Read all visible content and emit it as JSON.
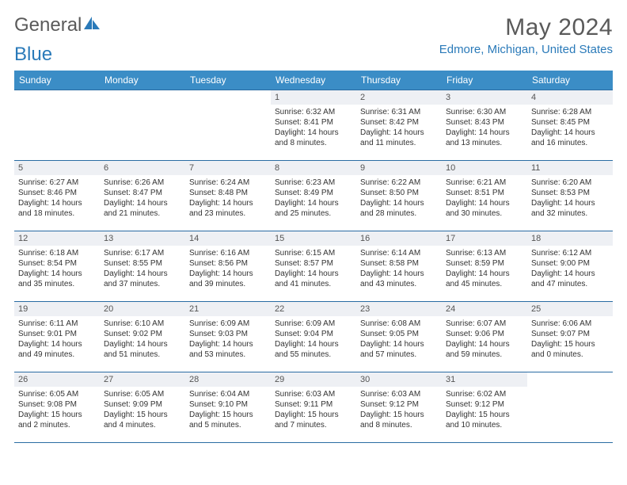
{
  "brand": {
    "prefix": "General",
    "suffix": "Blue",
    "icon_color": "#2a7ab9"
  },
  "title": "May 2024",
  "location": "Edmore, Michigan, United States",
  "colors": {
    "header_bg": "#3b8dc6",
    "border": "#2a6ca3",
    "daynum_bg": "#eef0f4",
    "text": "#333333",
    "brand_text": "#5a5a5a",
    "accent": "#2a7ab9",
    "background": "#ffffff"
  },
  "typography": {
    "title_fontsize": 30,
    "location_fontsize": 15,
    "dayhead_fontsize": 12,
    "cell_fontsize": 10
  },
  "day_names": [
    "Sunday",
    "Monday",
    "Tuesday",
    "Wednesday",
    "Thursday",
    "Friday",
    "Saturday"
  ],
  "weeks": [
    [
      null,
      null,
      null,
      {
        "n": "1",
        "sr": "6:32 AM",
        "ss": "8:41 PM",
        "dl": "14 hours and 8 minutes."
      },
      {
        "n": "2",
        "sr": "6:31 AM",
        "ss": "8:42 PM",
        "dl": "14 hours and 11 minutes."
      },
      {
        "n": "3",
        "sr": "6:30 AM",
        "ss": "8:43 PM",
        "dl": "14 hours and 13 minutes."
      },
      {
        "n": "4",
        "sr": "6:28 AM",
        "ss": "8:45 PM",
        "dl": "14 hours and 16 minutes."
      }
    ],
    [
      {
        "n": "5",
        "sr": "6:27 AM",
        "ss": "8:46 PM",
        "dl": "14 hours and 18 minutes."
      },
      {
        "n": "6",
        "sr": "6:26 AM",
        "ss": "8:47 PM",
        "dl": "14 hours and 21 minutes."
      },
      {
        "n": "7",
        "sr": "6:24 AM",
        "ss": "8:48 PM",
        "dl": "14 hours and 23 minutes."
      },
      {
        "n": "8",
        "sr": "6:23 AM",
        "ss": "8:49 PM",
        "dl": "14 hours and 25 minutes."
      },
      {
        "n": "9",
        "sr": "6:22 AM",
        "ss": "8:50 PM",
        "dl": "14 hours and 28 minutes."
      },
      {
        "n": "10",
        "sr": "6:21 AM",
        "ss": "8:51 PM",
        "dl": "14 hours and 30 minutes."
      },
      {
        "n": "11",
        "sr": "6:20 AM",
        "ss": "8:53 PM",
        "dl": "14 hours and 32 minutes."
      }
    ],
    [
      {
        "n": "12",
        "sr": "6:18 AM",
        "ss": "8:54 PM",
        "dl": "14 hours and 35 minutes."
      },
      {
        "n": "13",
        "sr": "6:17 AM",
        "ss": "8:55 PM",
        "dl": "14 hours and 37 minutes."
      },
      {
        "n": "14",
        "sr": "6:16 AM",
        "ss": "8:56 PM",
        "dl": "14 hours and 39 minutes."
      },
      {
        "n": "15",
        "sr": "6:15 AM",
        "ss": "8:57 PM",
        "dl": "14 hours and 41 minutes."
      },
      {
        "n": "16",
        "sr": "6:14 AM",
        "ss": "8:58 PM",
        "dl": "14 hours and 43 minutes."
      },
      {
        "n": "17",
        "sr": "6:13 AM",
        "ss": "8:59 PM",
        "dl": "14 hours and 45 minutes."
      },
      {
        "n": "18",
        "sr": "6:12 AM",
        "ss": "9:00 PM",
        "dl": "14 hours and 47 minutes."
      }
    ],
    [
      {
        "n": "19",
        "sr": "6:11 AM",
        "ss": "9:01 PM",
        "dl": "14 hours and 49 minutes."
      },
      {
        "n": "20",
        "sr": "6:10 AM",
        "ss": "9:02 PM",
        "dl": "14 hours and 51 minutes."
      },
      {
        "n": "21",
        "sr": "6:09 AM",
        "ss": "9:03 PM",
        "dl": "14 hours and 53 minutes."
      },
      {
        "n": "22",
        "sr": "6:09 AM",
        "ss": "9:04 PM",
        "dl": "14 hours and 55 minutes."
      },
      {
        "n": "23",
        "sr": "6:08 AM",
        "ss": "9:05 PM",
        "dl": "14 hours and 57 minutes."
      },
      {
        "n": "24",
        "sr": "6:07 AM",
        "ss": "9:06 PM",
        "dl": "14 hours and 59 minutes."
      },
      {
        "n": "25",
        "sr": "6:06 AM",
        "ss": "9:07 PM",
        "dl": "15 hours and 0 minutes."
      }
    ],
    [
      {
        "n": "26",
        "sr": "6:05 AM",
        "ss": "9:08 PM",
        "dl": "15 hours and 2 minutes."
      },
      {
        "n": "27",
        "sr": "6:05 AM",
        "ss": "9:09 PM",
        "dl": "15 hours and 4 minutes."
      },
      {
        "n": "28",
        "sr": "6:04 AM",
        "ss": "9:10 PM",
        "dl": "15 hours and 5 minutes."
      },
      {
        "n": "29",
        "sr": "6:03 AM",
        "ss": "9:11 PM",
        "dl": "15 hours and 7 minutes."
      },
      {
        "n": "30",
        "sr": "6:03 AM",
        "ss": "9:12 PM",
        "dl": "15 hours and 8 minutes."
      },
      {
        "n": "31",
        "sr": "6:02 AM",
        "ss": "9:12 PM",
        "dl": "15 hours and 10 minutes."
      },
      null
    ]
  ],
  "labels": {
    "sunrise": "Sunrise:",
    "sunset": "Sunset:",
    "daylight": "Daylight:"
  }
}
